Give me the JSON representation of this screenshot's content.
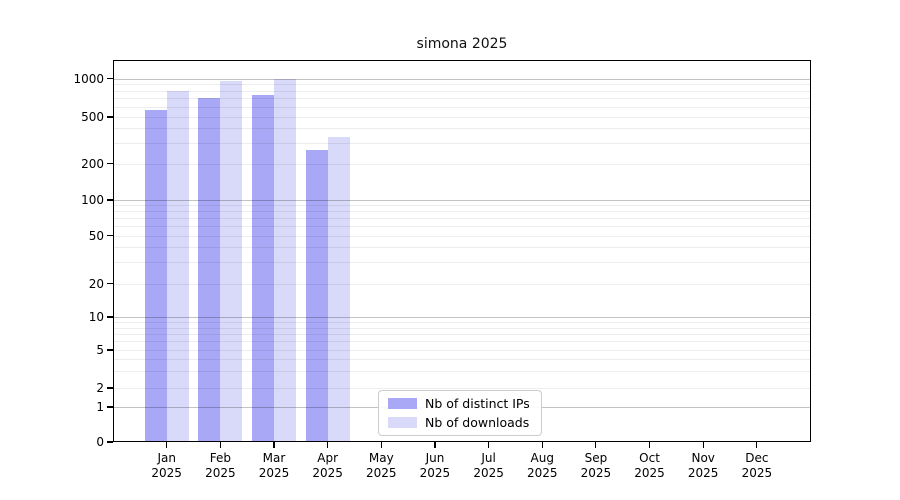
{
  "title": "simona 2025",
  "chart_data": {
    "type": "bar",
    "title": "simona 2025",
    "categories": [
      "Jan 2025",
      "Feb 2025",
      "Mar 2025",
      "Apr 2025",
      "May 2025",
      "Jun 2025",
      "Jul 2025",
      "Aug 2025",
      "Sep 2025",
      "Oct 2025",
      "Nov 2025",
      "Dec 2025"
    ],
    "x_tick_months": [
      "Jan",
      "Feb",
      "Mar",
      "Apr",
      "May",
      "Jun",
      "Jul",
      "Aug",
      "Sep",
      "Oct",
      "Nov",
      "Dec"
    ],
    "year": "2025",
    "series": [
      {
        "name": "Nb of distinct IPs",
        "color": "#a8a8f6",
        "values": [
          570,
          700,
          740,
          260,
          null,
          null,
          null,
          null,
          null,
          null,
          null,
          null
        ]
      },
      {
        "name": "Nb of downloads",
        "color": "#d9d9f9",
        "values": [
          800,
          950,
          1000,
          340,
          null,
          null,
          null,
          null,
          null,
          null,
          null,
          null
        ]
      }
    ],
    "yscale": "log-like with 0 baseline",
    "ytick_values": [
      0,
      1,
      2,
      5,
      10,
      20,
      50,
      100,
      200,
      500,
      1000
    ],
    "ytick_labels": [
      "0",
      "1",
      "2",
      "5",
      "10",
      "20",
      "50",
      "100",
      "200",
      "500",
      "1000"
    ],
    "minor_grid_values": [
      2,
      3,
      4,
      5,
      6,
      7,
      8,
      9,
      20,
      30,
      40,
      50,
      60,
      70,
      80,
      90,
      200,
      300,
      400,
      500,
      600,
      700,
      800,
      900
    ],
    "major_grid_values": [
      1,
      10,
      100,
      1000
    ],
    "grid": "horizontal",
    "legend_position": "lower center inside axes",
    "xlabel": "",
    "ylabel": ""
  },
  "legend": {
    "items": [
      {
        "label": "Nb of distinct IPs",
        "color": "#a8a8f6"
      },
      {
        "label": "Nb of downloads",
        "color": "#d9d9f9"
      }
    ]
  },
  "colors": {
    "bar_distinct_ips": "#a8a8f6",
    "bar_downloads": "#d9d9f9",
    "grid_major": "#c3c3c3",
    "grid_minor": "#ececec",
    "axis": "#000000",
    "background": "#ffffff",
    "title_text": "#111111"
  }
}
